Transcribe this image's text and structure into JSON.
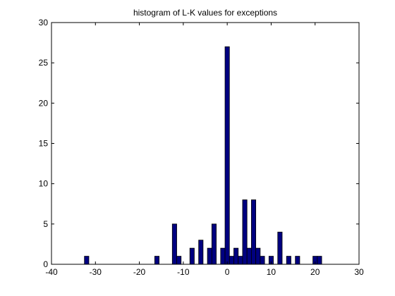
{
  "chart_data": {
    "type": "bar",
    "title": "histogram of L-K values for exceptions",
    "xlabel": "",
    "ylabel": "",
    "xlim": [
      -40,
      30
    ],
    "ylim": [
      0,
      30
    ],
    "xticks": [
      -40,
      -30,
      -20,
      -10,
      0,
      10,
      20,
      30
    ],
    "yticks": [
      0,
      5,
      10,
      15,
      20,
      25,
      30
    ],
    "grid": false,
    "bin_width": 1,
    "bar_color": "#000080",
    "edge_color": "#000000",
    "bins": [
      {
        "x": -32,
        "count": 1
      },
      {
        "x": -16,
        "count": 1
      },
      {
        "x": -12,
        "count": 5
      },
      {
        "x": -11,
        "count": 1
      },
      {
        "x": -8,
        "count": 2
      },
      {
        "x": -6,
        "count": 3
      },
      {
        "x": -4,
        "count": 2
      },
      {
        "x": -3,
        "count": 5
      },
      {
        "x": -1,
        "count": 2
      },
      {
        "x": 0,
        "count": 27
      },
      {
        "x": 1,
        "count": 1
      },
      {
        "x": 2,
        "count": 2
      },
      {
        "x": 3,
        "count": 1
      },
      {
        "x": 4,
        "count": 8
      },
      {
        "x": 5,
        "count": 2
      },
      {
        "x": 6,
        "count": 8
      },
      {
        "x": 7,
        "count": 2
      },
      {
        "x": 8,
        "count": 1
      },
      {
        "x": 10,
        "count": 1
      },
      {
        "x": 12,
        "count": 4
      },
      {
        "x": 14,
        "count": 1
      },
      {
        "x": 16,
        "count": 1
      },
      {
        "x": 20,
        "count": 1
      },
      {
        "x": 21,
        "count": 1
      }
    ]
  }
}
